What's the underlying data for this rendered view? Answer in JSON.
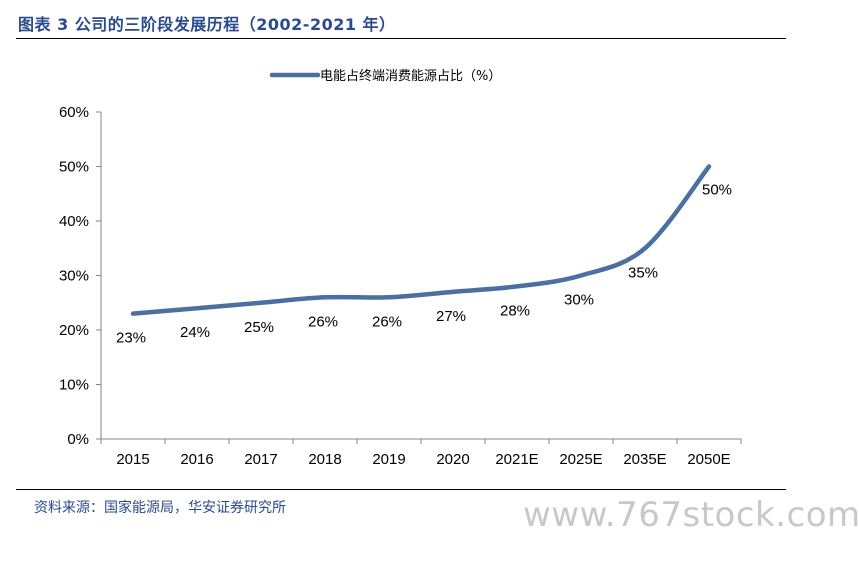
{
  "figure_title": "图表 3 公司的三阶段发展历程（2002-2021 年）",
  "source": "资料来源：国家能源局，华安证券研究所",
  "watermark": "www.767stock.com",
  "colors": {
    "line": "#4a6fa0",
    "title": "#2a4b8d"
  },
  "chart_data": {
    "type": "line",
    "categories": [
      "2015",
      "2016",
      "2017",
      "2018",
      "2019",
      "2020",
      "2021E",
      "2025E",
      "2035E",
      "2050E"
    ],
    "series": [
      {
        "name": "电能占终端消费能源占比（%）",
        "values": [
          23,
          24,
          25,
          26,
          26,
          27,
          28,
          30,
          35,
          50
        ],
        "labels": [
          "23%",
          "24%",
          "25%",
          "26%",
          "26%",
          "27%",
          "28%",
          "30%",
          "35%",
          "50%"
        ]
      }
    ],
    "y_ticks": [
      "0%",
      "10%",
      "20%",
      "30%",
      "40%",
      "50%",
      "60%"
    ],
    "ylim": [
      0,
      60
    ],
    "legend_position": "top",
    "grid": false
  }
}
